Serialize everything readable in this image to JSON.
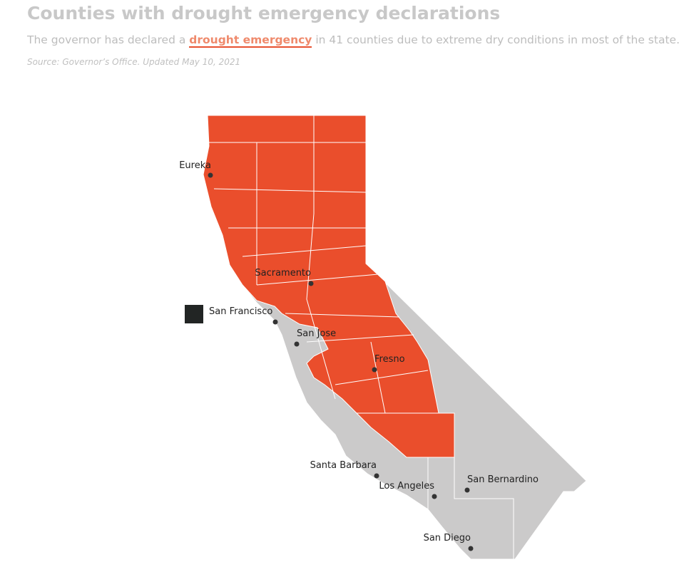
{
  "header": {
    "title": "Counties with drought emergency declarations",
    "subtitle": {
      "before": "The governor has declared a ",
      "link": "drought emergency",
      "after": " in 41 counties due to extreme dry conditions in most of the state."
    },
    "source": "Source: Governor’s Office. Updated May 10, 2021"
  },
  "map": {
    "cities": [
      "Eureka",
      "Sacramento",
      "San Francisco",
      "San Jose",
      "Fresno",
      "Santa Barbara",
      "Los Angeles",
      "San Bernardino",
      "San Diego"
    ]
  }
}
